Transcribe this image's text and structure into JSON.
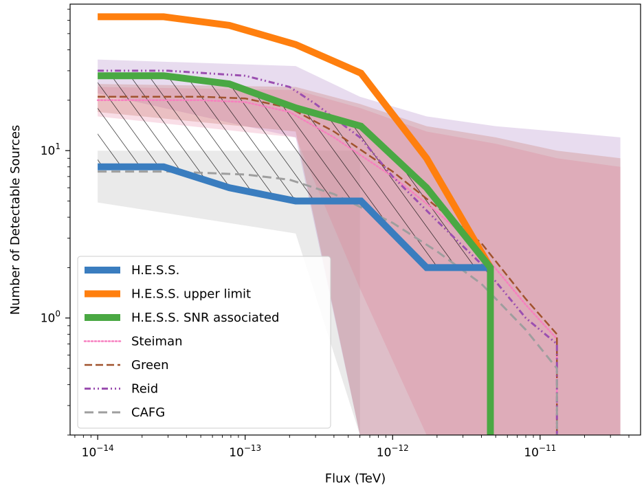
{
  "chart_data": {
    "type": "line",
    "xlabel": "Flux (TeV)",
    "ylabel": "Number of Detectable Sources",
    "xscale": "log",
    "yscale": "log",
    "xlim": [
      6.5e-15,
      4.8e-11
    ],
    "ylim": [
      0.2,
      75
    ],
    "grid": false,
    "legend_position": "lower-left",
    "x_ticks": [
      {
        "value": 1e-14,
        "base": "10",
        "exp": "−14"
      },
      {
        "value": 1e-13,
        "base": "10",
        "exp": "−13"
      },
      {
        "value": 1e-12,
        "base": "10",
        "exp": "−12"
      },
      {
        "value": 1e-11,
        "base": "10",
        "exp": "−11"
      }
    ],
    "y_ticks": [
      {
        "value": 1,
        "base": "10",
        "exp": "0"
      },
      {
        "value": 10,
        "base": "10",
        "exp": "1"
      }
    ],
    "series": [
      {
        "name": "H.E.S.S.",
        "style": "thick",
        "color": "#3a7dbf",
        "x": [
          1e-14,
          2.8e-14,
          7.8e-14,
          2.2e-13,
          6.1e-13,
          1.7e-12,
          4.6e-12
        ],
        "y": [
          8,
          8,
          6,
          5,
          5,
          2,
          2
        ]
      },
      {
        "name": "H.E.S.S. upper limit",
        "style": "thick",
        "color": "#ff7f0e",
        "x": [
          1e-14,
          2.8e-14,
          7.8e-14,
          2.2e-13,
          6.1e-13,
          1.7e-12,
          4.6e-12
        ],
        "y": [
          63,
          63,
          56,
          43,
          29,
          9,
          2
        ]
      },
      {
        "name": "H.E.S.S. SNR associated",
        "style": "thick",
        "color": "#4aa843",
        "x": [
          1e-14,
          2.8e-14,
          7.8e-14,
          2.2e-13,
          6.1e-13,
          1.7e-12,
          4.6e-12,
          4.6e-12
        ],
        "y": [
          28,
          28,
          25,
          18,
          14,
          6,
          2,
          0.15
        ]
      },
      {
        "name": "Steiman",
        "style": "dotted",
        "color": "#f77fbf",
        "x": [
          1e-14,
          2e-14,
          5e-14,
          1e-13,
          2e-13,
          4e-13,
          1e-12,
          2e-12,
          4e-12,
          8e-12,
          1.3e-11,
          1.3e-11
        ],
        "y": [
          20,
          20,
          20,
          19.5,
          17,
          12,
          7,
          4.3,
          2.5,
          1.2,
          0.75,
          0.2
        ]
      },
      {
        "name": "Green",
        "style": "dashed",
        "color": "#a0522d",
        "x": [
          1e-14,
          2e-14,
          5e-14,
          1e-13,
          2e-13,
          4e-13,
          1e-12,
          2e-12,
          4e-12,
          8e-12,
          1.3e-11,
          1.3e-11
        ],
        "y": [
          21,
          21,
          21,
          20.5,
          18,
          13,
          7.5,
          4.6,
          2.8,
          1.3,
          0.8,
          0.2
        ]
      },
      {
        "name": "Reid",
        "style": "dashdot",
        "color": "#9b4fb0",
        "x": [
          1e-14,
          3e-14,
          1e-13,
          2e-13,
          3e-13,
          6e-13,
          1e-12,
          2e-12,
          4e-12,
          8e-12,
          1.3e-11,
          1.3e-11
        ],
        "y": [
          30,
          30,
          28,
          24,
          19,
          12,
          7,
          3.8,
          2.1,
          1.0,
          0.7,
          0.2
        ]
      },
      {
        "name": "CAFG",
        "style": "longdash",
        "color": "#9e9e9e",
        "x": [
          1e-14,
          3e-14,
          1e-13,
          2e-13,
          4e-13,
          1e-12,
          2e-12,
          4e-12,
          8e-12,
          1.3e-11,
          1.3e-11
        ],
        "y": [
          7.5,
          7.5,
          7.2,
          6.7,
          5.5,
          3.7,
          2.5,
          1.6,
          0.85,
          0.5,
          0.2
        ]
      }
    ],
    "bands": [
      {
        "series": "CAFG",
        "color": "#d0d0d0",
        "opacity": 0.45,
        "x": [
          1e-14,
          2.2e-13,
          6e-13,
          6e-13
        ],
        "upper": [
          10,
          10,
          10,
          10
        ],
        "lower": [
          4.9,
          3.2,
          0.2,
          0.2
        ]
      },
      {
        "series": "Reid",
        "color": "#b48acb",
        "opacity": 0.3,
        "x": [
          1e-14,
          2.2e-13,
          6e-13,
          1.7e-12,
          5e-12,
          1.3e-11,
          3.5e-11
        ],
        "upper": [
          35,
          32,
          21,
          16,
          14,
          13,
          12
        ],
        "lower": [
          22,
          12,
          0.2,
          0.2,
          0.2,
          0.2,
          0.2
        ]
      },
      {
        "series": "Steiman",
        "color": "#e88aa8",
        "opacity": 0.28,
        "x": [
          1e-14,
          2.2e-13,
          6e-13,
          1.7e-12,
          5e-12,
          1.3e-11,
          3.5e-11
        ],
        "upper": [
          24,
          23,
          18,
          13,
          11,
          9,
          8
        ],
        "lower": [
          16,
          12,
          1.5,
          0.2,
          0.2,
          0.2,
          0.2
        ]
      },
      {
        "series": "Green",
        "color": "#c06a5a",
        "opacity": 0.26,
        "x": [
          1e-14,
          2.2e-13,
          6e-13,
          1.7e-12,
          5e-12,
          1.3e-11,
          3.5e-11
        ],
        "upper": [
          25,
          24,
          19,
          14,
          12,
          10,
          9
        ],
        "lower": [
          17,
          13,
          0.2,
          0.2,
          0.2,
          0.2,
          0.2
        ]
      }
    ],
    "hatch_region": {
      "between": [
        "H.E.S.S.",
        "H.E.S.S. SNR associated"
      ],
      "x": [
        1e-14,
        2.8e-14,
        7.8e-14,
        2.2e-13,
        6.1e-13,
        1.7e-12,
        4.6e-12
      ],
      "upper": [
        28,
        28,
        25,
        18,
        14,
        6,
        2
      ],
      "lower": [
        8,
        8,
        6,
        5,
        5,
        2,
        2
      ]
    }
  }
}
